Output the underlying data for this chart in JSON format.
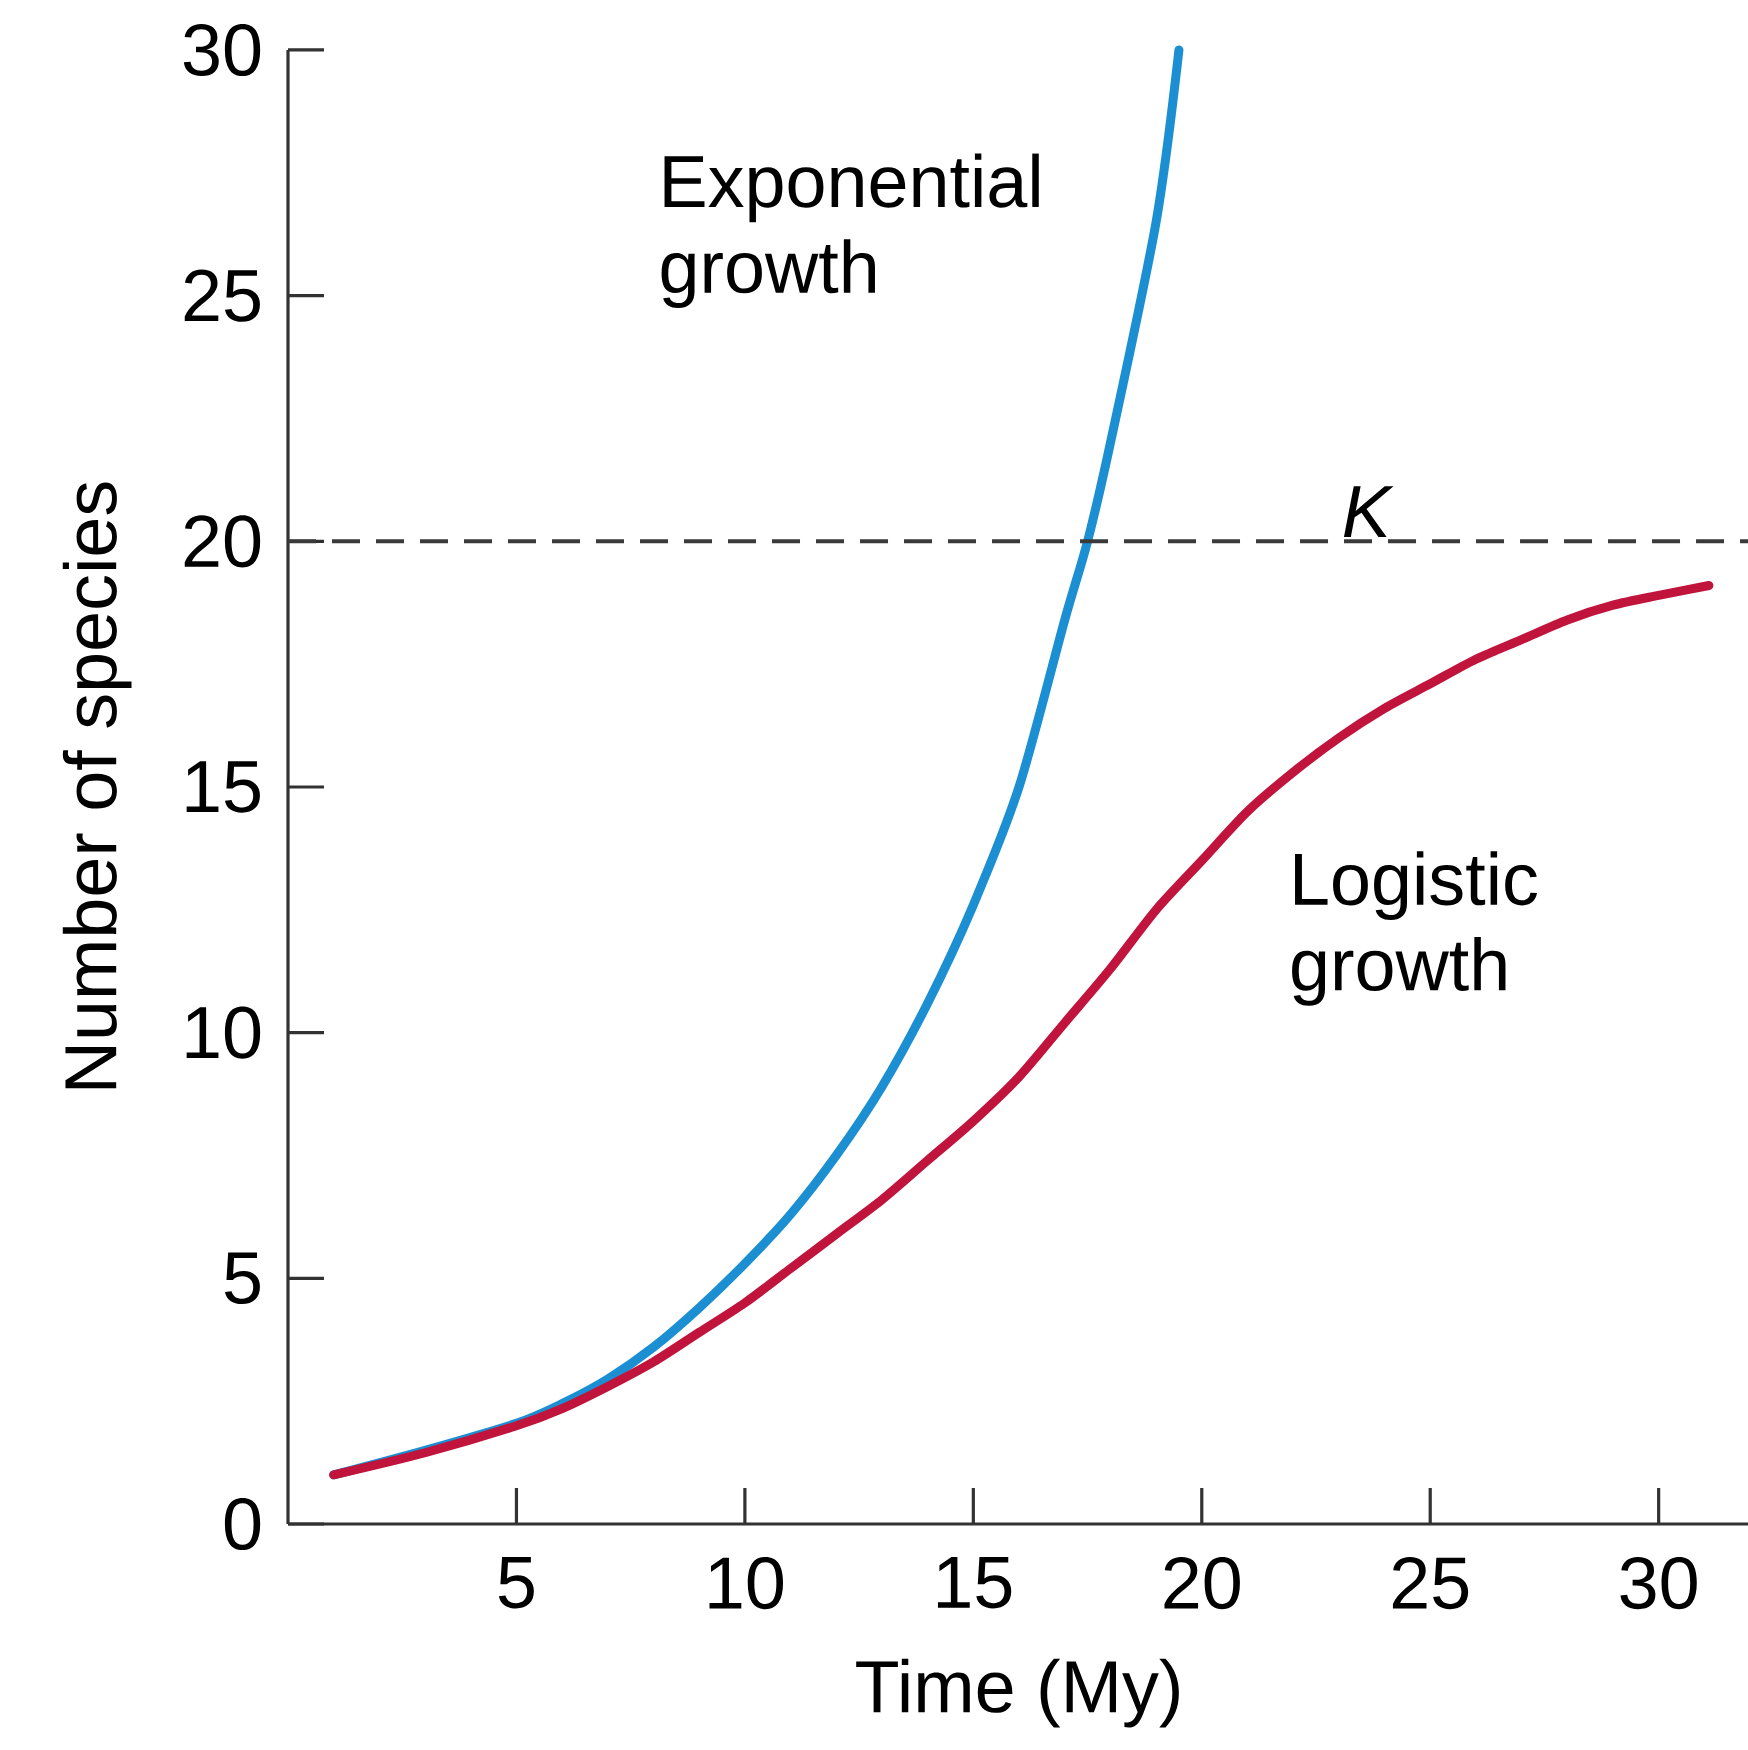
{
  "chart_data": {
    "type": "line",
    "xlabel": "Time (My)",
    "ylabel": "Number of species",
    "xlim": [
      0,
      32
    ],
    "ylim": [
      0,
      30
    ],
    "xticks": [
      5,
      10,
      15,
      20,
      25,
      30
    ],
    "yticks": [
      0,
      5,
      10,
      15,
      20,
      25,
      30
    ],
    "ref_lines": [
      {
        "axis": "y",
        "value": 20,
        "label": "K",
        "color": "#3a3a3a",
        "line_style": "dashed"
      }
    ],
    "series": [
      {
        "name": "Exponential growth",
        "color": "#1b8fd2",
        "x": [
          1,
          3,
          5,
          6,
          7,
          8,
          9,
          10,
          11,
          12,
          13,
          14,
          15,
          16,
          17,
          17.5,
          18,
          19,
          19.5
        ],
        "values": [
          1,
          1.5,
          2.05,
          2.45,
          2.95,
          3.6,
          4.4,
          5.3,
          6.3,
          7.5,
          8.9,
          10.6,
          12.6,
          15.0,
          18.4,
          20,
          22,
          26.5,
          30
        ]
      },
      {
        "name": "Logistic growth",
        "color": "#c0143c",
        "x": [
          1,
          3,
          5,
          6,
          7,
          8,
          9,
          10,
          11,
          12,
          13,
          14,
          15,
          16,
          17,
          18,
          19,
          20,
          21,
          22,
          23,
          24,
          25,
          26,
          27,
          28,
          29,
          30,
          31.1
        ],
        "values": [
          1,
          1.45,
          2.0,
          2.35,
          2.8,
          3.3,
          3.9,
          4.5,
          5.2,
          5.9,
          6.6,
          7.4,
          8.2,
          9.1,
          10.2,
          11.3,
          12.5,
          13.5,
          14.5,
          15.3,
          16.0,
          16.6,
          17.1,
          17.6,
          18.0,
          18.4,
          18.7,
          18.9,
          19.1
        ]
      }
    ]
  }
}
